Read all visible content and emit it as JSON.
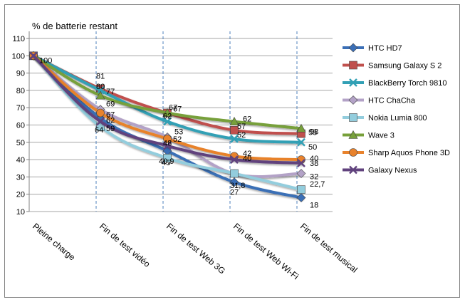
{
  "chart_data": {
    "type": "line",
    "ylabel": "% de batterie restant",
    "ylim": [
      10,
      110
    ],
    "yticks": [
      10,
      20,
      30,
      40,
      50,
      60,
      70,
      80,
      90,
      100,
      110
    ],
    "categories": [
      "Pleine charge",
      "Fin de test  vidéo",
      "Fin de test  Web 3G",
      "Fin de test  Web Wi-Fi",
      "Fin de test  musical"
    ],
    "grid": "horizontal solid, vertical dashed",
    "legend_position": "right",
    "series": [
      {
        "name": "HTC HD7",
        "color": "#3b6fb6",
        "marker": "diamond",
        "values": [
          100,
          64,
          45,
          27,
          18
        ],
        "labels": [
          "",
          "64",
          "45",
          "27",
          "18"
        ]
      },
      {
        "name": "Samsung Galaxy S 2",
        "color": "#c0504d",
        "marker": "square",
        "values": [
          100,
          81,
          67,
          57,
          55
        ],
        "labels": [
          "",
          "81",
          "67",
          "57",
          "55"
        ]
      },
      {
        "name": "BlackBerry Torch 9810",
        "color": "#31a0b5",
        "marker": "x",
        "values": [
          100,
          80,
          62,
          52,
          50
        ],
        "labels": [
          "",
          "80",
          "62",
          "52",
          "50"
        ]
      },
      {
        "name": "HTC ChaCha",
        "color": "#b3a2c7",
        "marker": "diamond",
        "values": [
          100,
          69,
          53,
          31.8,
          32
        ],
        "labels": [
          "",
          "69",
          "53",
          "31,8",
          "32"
        ]
      },
      {
        "name": "Nokia Lumia 800",
        "color": "#93cddd",
        "marker": "square",
        "values": [
          100,
          59,
          40.9,
          32,
          22.7
        ],
        "labels": [
          "",
          "59",
          "40,9",
          "",
          "22,7"
        ]
      },
      {
        "name": "Wave 3",
        "color": "#77a03a",
        "marker": "triangle",
        "values": [
          100,
          77,
          67,
          62,
          58
        ],
        "labels": [
          "",
          "77",
          "67",
          "62",
          "58"
        ]
      },
      {
        "name": "Sharp Aquos Phone 3D",
        "color": "#e8822c",
        "marker": "circle",
        "values": [
          100,
          67,
          52,
          42,
          40
        ],
        "labels": [
          "",
          "67",
          "52",
          "42",
          "40"
        ]
      },
      {
        "name": "Galaxy Nexus",
        "color": "#60427d",
        "marker": "x",
        "values": [
          100,
          62,
          48,
          40,
          38
        ],
        "labels": [
          "100",
          "62",
          "48",
          "40",
          "38"
        ]
      }
    ]
  }
}
